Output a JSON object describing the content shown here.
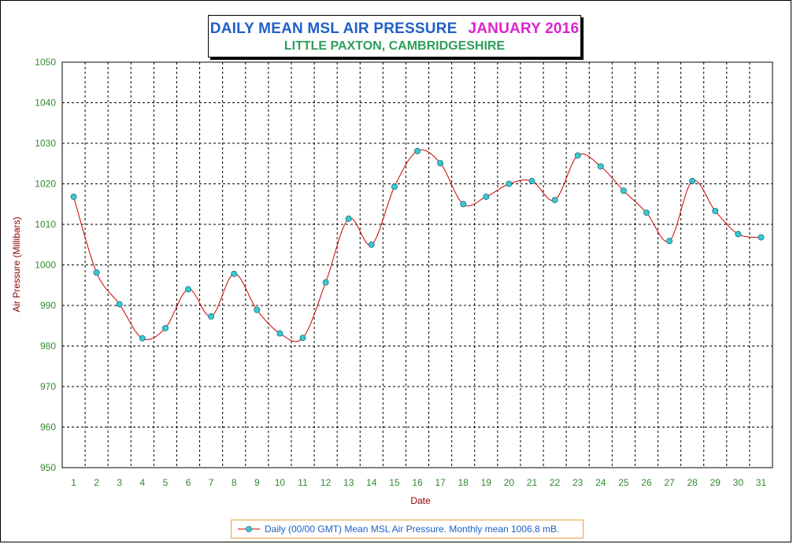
{
  "title": {
    "main": "DAILY MEAN MSL AIR PRESSURE",
    "period": "JANUARY 2016",
    "subtitle": "LITTLE PAXTON, CAMBRIDGESHIRE"
  },
  "colors": {
    "title_main": "#1f5fc8",
    "title_period": "#e020d0",
    "subtitle": "#2e9e5b",
    "tick_labels": "#2e8b2e",
    "axis_titles": "#8b0000",
    "line": "#cc0000",
    "marker_fill": "#33cccc",
    "legend_border": "#e8a040",
    "legend_text": "#1f5fc8"
  },
  "legend": {
    "label": "Daily (00/00 GMT) Mean MSL Air Pressure. Monthly mean 1006.8 mB."
  },
  "chart_data": {
    "type": "line",
    "title": "DAILY MEAN MSL AIR PRESSURE",
    "xlabel": "Date",
    "ylabel": "Air Pressure (Millibars)",
    "ylim": [
      950,
      1050
    ],
    "yticks": [
      950,
      960,
      970,
      980,
      990,
      1000,
      1010,
      1020,
      1030,
      1040,
      1050
    ],
    "categories": [
      "1",
      "2",
      "3",
      "4",
      "5",
      "6",
      "7",
      "8",
      "9",
      "10",
      "11",
      "12",
      "13",
      "14",
      "15",
      "16",
      "17",
      "18",
      "19",
      "20",
      "21",
      "22",
      "23",
      "24",
      "25",
      "26",
      "27",
      "28",
      "29",
      "30",
      "31"
    ],
    "grid": true,
    "legend_position": "bottom",
    "series": [
      {
        "name": "Daily (00/00 GMT) Mean MSL Air Pressure. Monthly mean 1006.8 mB.",
        "values": [
          1016.8,
          998.1,
          990.3,
          981.9,
          984.4,
          994.0,
          987.3,
          997.8,
          988.9,
          983.1,
          982.0,
          995.7,
          1011.4,
          1005.0,
          1019.3,
          1028.1,
          1025.1,
          1015.0,
          1016.8,
          1020.0,
          1020.7,
          1016.0,
          1027.0,
          1024.3,
          1018.3,
          1012.9,
          1005.9,
          1020.7,
          1013.3,
          1007.6,
          1006.8
        ]
      }
    ]
  }
}
